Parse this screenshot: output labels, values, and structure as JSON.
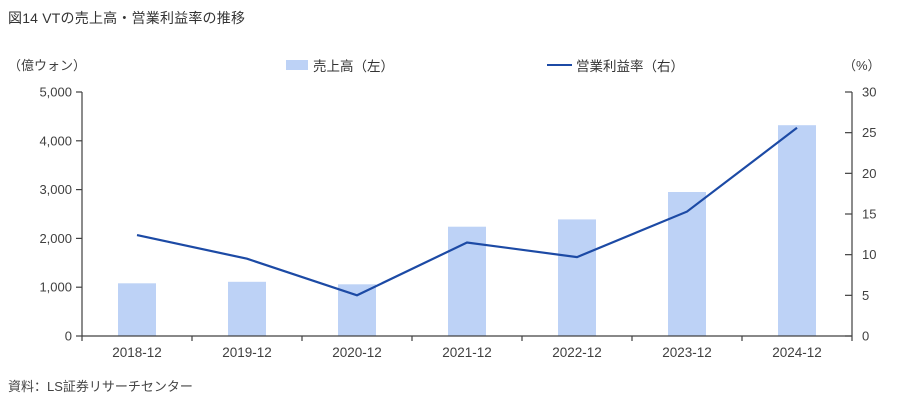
{
  "title": "図14 VTの売上高・営業利益率の推移",
  "source": "資料：LS証券リサーチセンター",
  "axes_units": {
    "left": "（億ウォン）",
    "right": "（%）"
  },
  "colors": {
    "bar": "#bdd2f6",
    "line": "#1c4aa5",
    "axis": "#404040",
    "text": "#333333"
  },
  "chart_data": {
    "type": "bar",
    "subtype": "bar+line combo, dual axis",
    "categories": [
      "2018-12",
      "2019-12",
      "2020-12",
      "2021-12",
      "2022-12",
      "2023-12",
      "2024-12"
    ],
    "series": [
      {
        "name": "売上高（左）",
        "type": "bar",
        "axis": "left",
        "color": "#bdd2f6",
        "values": [
          1080,
          1110,
          1060,
          2240,
          2390,
          2950,
          4320
        ]
      },
      {
        "name": "営業利益率（右）",
        "type": "line",
        "axis": "right",
        "color": "#1c4aa5",
        "values": [
          12.4,
          9.5,
          5.0,
          11.5,
          9.7,
          15.3,
          25.6
        ]
      }
    ],
    "left_axis": {
      "unit": "（億ウォン）",
      "min": 0,
      "max": 5000,
      "step": 1000
    },
    "right_axis": {
      "unit": "（%）",
      "min": 0,
      "max": 30,
      "step": 5
    },
    "grid": false,
    "legend_position": "top"
  }
}
